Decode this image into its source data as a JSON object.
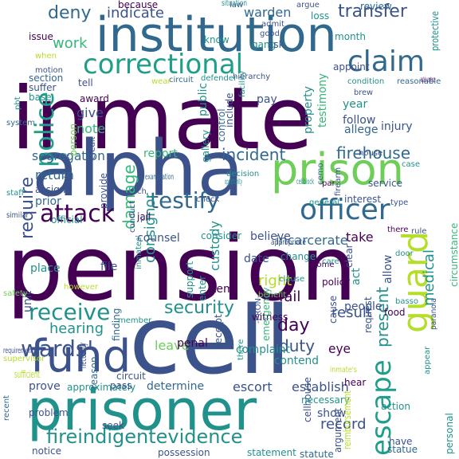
{
  "palette": {
    "dark_purple": "#440154",
    "indigo": "#3b528b",
    "blue": "#31688e",
    "teal": "#21918c",
    "sea_green": "#1f9e89",
    "green": "#35b779",
    "light_green": "#6ece58",
    "lime": "#b5de2b",
    "yellow": "#fde725"
  },
  "words": [
    {
      "text": "pension",
      "color": "dark_purple"
    },
    {
      "text": "inmate",
      "color": "dark_purple"
    },
    {
      "text": "cell",
      "color": "indigo"
    },
    {
      "text": "institution",
      "color": "blue"
    },
    {
      "text": "alpha",
      "color": "indigo"
    },
    {
      "text": "prisoner",
      "color": "teal"
    },
    {
      "text": "prison",
      "color": "light_green"
    },
    {
      "text": "fund",
      "color": "indigo"
    },
    {
      "text": "officer",
      "color": "blue"
    },
    {
      "text": "guard",
      "color": "lime"
    },
    {
      "text": "escape",
      "color": "sea_green"
    },
    {
      "text": "correctional",
      "color": "sea_green"
    },
    {
      "text": "attack",
      "color": "dark_purple"
    },
    {
      "text": "testify",
      "color": "blue"
    },
    {
      "text": "claim",
      "color": "blue"
    },
    {
      "text": "police",
      "color": "sea_green"
    },
    {
      "text": "receive",
      "color": "teal"
    },
    {
      "text": "wards'",
      "color": "indigo"
    },
    {
      "text": "fireindigentevidence",
      "color": "teal"
    },
    {
      "text": "security",
      "color": "teal"
    },
    {
      "text": "deny",
      "color": "blue"
    },
    {
      "text": "transfer",
      "color": "indigo"
    },
    {
      "text": "indicate",
      "color": "indigo"
    },
    {
      "text": "work",
      "color": "green"
    },
    {
      "text": "require",
      "color": "indigo"
    },
    {
      "text": "firehouse",
      "color": "blue"
    },
    {
      "text": "incident",
      "color": "blue"
    },
    {
      "text": "damage",
      "color": "green"
    },
    {
      "text": "day",
      "color": "dark_purple"
    },
    {
      "text": "duty",
      "color": "indigo"
    },
    {
      "text": "result",
      "color": "indigo"
    },
    {
      "text": "present",
      "color": "teal"
    },
    {
      "text": "medical",
      "color": "teal"
    },
    {
      "text": "record",
      "color": "indigo"
    },
    {
      "text": "consignor",
      "color": "teal"
    },
    {
      "text": "right",
      "color": "lime"
    },
    {
      "text": "hearing",
      "color": "teal"
    },
    {
      "text": "custody",
      "color": "teal"
    },
    {
      "text": "incarcerate",
      "color": "blue"
    },
    {
      "text": "testimony",
      "color": "green"
    },
    {
      "text": "warden",
      "color": "blue"
    },
    {
      "text": "note",
      "color": "green"
    },
    {
      "text": "give",
      "color": "indigo"
    },
    {
      "text": "segregation",
      "color": "blue"
    },
    {
      "text": "return",
      "color": "blue"
    },
    {
      "text": "prior",
      "color": "blue"
    },
    {
      "text": "report",
      "color": "green"
    },
    {
      "text": "public",
      "color": "teal"
    },
    {
      "text": "property",
      "color": "teal"
    },
    {
      "text": "injury",
      "color": "indigo"
    },
    {
      "text": "allege",
      "color": "blue"
    },
    {
      "text": "follow",
      "color": "indigo"
    },
    {
      "text": "year",
      "color": "teal"
    },
    {
      "text": "pay",
      "color": "indigo"
    },
    {
      "text": "because",
      "color": "dark_purple"
    },
    {
      "text": "issue",
      "color": "dark_purple"
    },
    {
      "text": "section",
      "color": "blue"
    },
    {
      "text": "tell",
      "color": "indigo"
    },
    {
      "text": "award",
      "color": "dark_purple"
    },
    {
      "text": "appoint",
      "color": "indigo"
    },
    {
      "text": "review",
      "color": "blue"
    },
    {
      "text": "protective",
      "color": "teal"
    },
    {
      "text": "know",
      "color": "teal"
    },
    {
      "text": "file",
      "color": "indigo"
    },
    {
      "text": "date",
      "color": "indigo"
    },
    {
      "text": "fail",
      "color": "dark_purple"
    },
    {
      "text": "act",
      "color": "teal"
    },
    {
      "text": "allow",
      "color": "indigo"
    },
    {
      "text": "people",
      "color": "indigo"
    },
    {
      "text": "take",
      "color": "dark_purple"
    },
    {
      "text": "believe",
      "color": "indigo"
    },
    {
      "text": "counsel",
      "color": "indigo"
    },
    {
      "text": "consider",
      "color": "teal"
    },
    {
      "text": "item",
      "color": "dark_purple"
    },
    {
      "text": "leave",
      "color": "light_green"
    },
    {
      "text": "contend",
      "color": "teal"
    },
    {
      "text": "complaint",
      "color": "teal"
    },
    {
      "text": "determine",
      "color": "blue"
    },
    {
      "text": "escort",
      "color": "indigo"
    },
    {
      "text": "establish",
      "color": "indigo"
    },
    {
      "text": "eye",
      "color": "dark_purple"
    },
    {
      "text": "show",
      "color": "indigo"
    },
    {
      "text": "jail",
      "color": "dark_purple"
    },
    {
      "text": "provide",
      "color": "indigo"
    },
    {
      "text": "interest",
      "color": "indigo"
    },
    {
      "text": "service",
      "color": "indigo"
    },
    {
      "text": "place",
      "color": "teal"
    },
    {
      "text": "official",
      "color": "teal"
    },
    {
      "text": "assign",
      "color": "indigo"
    },
    {
      "text": "circumstance",
      "color": "green"
    },
    {
      "text": "prove",
      "color": "indigo"
    },
    {
      "text": "unit",
      "color": "indigo"
    },
    {
      "text": "approximately",
      "color": "teal"
    },
    {
      "text": "penal",
      "color": "dark_purple"
    },
    {
      "text": "problem",
      "color": "indigo"
    },
    {
      "text": "seek",
      "color": "indigo"
    },
    {
      "text": "possession",
      "color": "indigo"
    },
    {
      "text": "statement",
      "color": "teal"
    },
    {
      "text": "statute",
      "color": "blue"
    },
    {
      "text": "notice",
      "color": "indigo"
    },
    {
      "text": "have",
      "color": "indigo"
    },
    {
      "text": "cellhouse",
      "color": "indigo"
    },
    {
      "text": "personal",
      "color": "teal"
    },
    {
      "text": "action",
      "color": "teal"
    },
    {
      "text": "request",
      "color": "indigo"
    },
    {
      "text": "food",
      "color": "dark_purple"
    },
    {
      "text": "cause",
      "color": "indigo"
    },
    {
      "text": "pass",
      "color": "indigo"
    },
    {
      "text": "circuit",
      "color": "indigo"
    },
    {
      "text": "receipt",
      "color": "indigo"
    },
    {
      "text": "support",
      "color": "teal"
    },
    {
      "text": "enter",
      "color": "teal"
    },
    {
      "text": "finding",
      "color": "blue"
    },
    {
      "text": "gallery",
      "color": "teal"
    },
    {
      "text": "control",
      "color": "blue"
    },
    {
      "text": "include",
      "color": "indigo"
    },
    {
      "text": "person",
      "color": "light_green"
    },
    {
      "text": "base",
      "color": "teal"
    },
    {
      "text": "suffer",
      "color": "indigo"
    },
    {
      "text": "gang",
      "color": "teal"
    },
    {
      "text": "ask",
      "color": "indigo"
    },
    {
      "text": "month",
      "color": "teal"
    },
    {
      "text": "loss",
      "color": "teal"
    },
    {
      "text": "good",
      "color": "indigo"
    },
    {
      "text": "argue",
      "color": "indigo"
    },
    {
      "text": "admit",
      "color": "indigo"
    },
    {
      "text": "law",
      "color": "indigo"
    },
    {
      "text": "condition",
      "color": "teal"
    },
    {
      "text": "reasonable",
      "color": "blue"
    },
    {
      "text": "statue",
      "color": "blue"
    },
    {
      "text": "witness",
      "color": "dark_purple"
    },
    {
      "text": "policy",
      "color": "dark_purple"
    },
    {
      "text": "come",
      "color": "dark_purple"
    },
    {
      "text": "change",
      "color": "teal"
    },
    {
      "text": "benefit",
      "color": "light_green"
    },
    {
      "text": "emergency",
      "color": "green"
    },
    {
      "text": "clear",
      "color": "indigo"
    },
    {
      "text": "necessity",
      "color": "indigo"
    },
    {
      "text": "reason",
      "color": "blue"
    },
    {
      "text": "hear",
      "color": "dark_purple"
    },
    {
      "text": "sufficient",
      "color": "lime"
    },
    {
      "text": "argument",
      "color": "indigo"
    },
    {
      "text": "necessary",
      "color": "teal"
    },
    {
      "text": "reimbursement",
      "color": "lime"
    },
    {
      "text": "recent",
      "color": "blue"
    },
    {
      "text": "there",
      "color": "teal"
    },
    {
      "text": "credit",
      "color": "indigo"
    },
    {
      "text": "system",
      "color": "blue"
    },
    {
      "text": "staff",
      "color": "teal"
    },
    {
      "text": "similar",
      "color": "indigo"
    },
    {
      "text": "safety",
      "color": "light_green"
    },
    {
      "text": "general",
      "color": "teal"
    },
    {
      "text": "par",
      "color": "dark_purple"
    },
    {
      "text": "cellblock",
      "color": "teal"
    },
    {
      "text": "defender",
      "color": "teal"
    },
    {
      "text": "ph",
      "color": "indigo"
    },
    {
      "text": "sustain a sentence",
      "color": "dark_purple"
    },
    {
      "text": "however",
      "color": "lime"
    },
    {
      "text": "conduct",
      "color": "indigo"
    },
    {
      "text": "inmates'",
      "color": "teal"
    },
    {
      "text": "check",
      "color": "indigo"
    },
    {
      "text": "requirement",
      "color": "indigo"
    },
    {
      "text": "supervisor",
      "color": "lime"
    },
    {
      "text": "appear",
      "color": "teal"
    },
    {
      "text": "paranoia",
      "color": "indigo"
    },
    {
      "text": "house",
      "color": "indigo"
    },
    {
      "text": "rule",
      "color": "indigo"
    },
    {
      "text": "case",
      "color": "teal"
    },
    {
      "text": "clause",
      "color": "teal"
    },
    {
      "text": "appropriate",
      "color": "indigo"
    },
    {
      "text": "inmate's",
      "color": "lime"
    },
    {
      "text": "type",
      "color": "indigo"
    },
    {
      "text": "firearm",
      "color": "indigo"
    },
    {
      "text": "ch",
      "color": "indigo"
    },
    {
      "text": "-PRON-",
      "color": "indigo"
    },
    {
      "text": "examination",
      "color": "blue"
    },
    {
      "text": "decision",
      "color": "teal"
    },
    {
      "text": "member",
      "color": "teal"
    },
    {
      "text": "opportunity",
      "color": "teal"
    },
    {
      "text": "situation",
      "color": "teal"
    },
    {
      "text": "facility",
      "color": "teal"
    },
    {
      "text": "circuit",
      "color": "blue"
    },
    {
      "text": "when",
      "color": "lime"
    },
    {
      "text": "motion",
      "color": "indigo"
    },
    {
      "text": "behavior",
      "color": "indigo"
    },
    {
      "text": "wear",
      "color": "lime"
    },
    {
      "text": "hierarchy",
      "color": "indigo"
    },
    {
      "text": "brew",
      "color": "indigo"
    },
    {
      "text": "there",
      "color": "dark_purple"
    },
    {
      "text": "door",
      "color": "teal"
    },
    {
      "text": "care",
      "color": "teal"
    },
    {
      "text": "basso",
      "color": "teal"
    },
    {
      "text": "pbt",
      "color": "teal"
    },
    {
      "text": "cemo",
      "color": "blue"
    }
  ]
}
